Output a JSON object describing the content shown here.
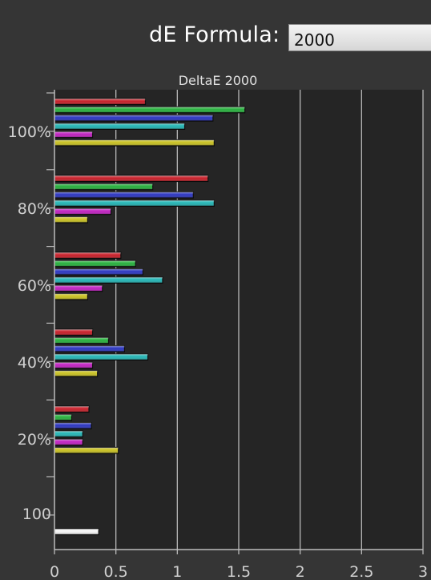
{
  "formula": {
    "label": "dE Formula:",
    "selected": "2000"
  },
  "colors": {
    "background": "#353535",
    "plot_background": "#252525",
    "gridline": "#b8b8b8"
  },
  "chart_data": {
    "type": "bar",
    "orientation": "horizontal",
    "title": "DeltaE 2000",
    "xlim": [
      0,
      3
    ],
    "x_ticks": [
      "0",
      "0.5",
      "1",
      "1.5",
      "2",
      "2.5",
      "3"
    ],
    "grid": true,
    "series_colors": [
      "#c81e28",
      "#26b03c",
      "#2a34c0",
      "#22b4b4",
      "#c020c0",
      "#c8c020"
    ],
    "groups": [
      {
        "label": "100%",
        "values": [
          0.74,
          1.55,
          1.29,
          1.06,
          0.31,
          1.3
        ]
      },
      {
        "label": "80%",
        "values": [
          1.25,
          0.8,
          1.13,
          1.3,
          0.46,
          0.27
        ]
      },
      {
        "label": "60%",
        "values": [
          0.54,
          0.66,
          0.72,
          0.88,
          0.39,
          0.27
        ]
      },
      {
        "label": "40%",
        "values": [
          0.31,
          0.44,
          0.57,
          0.76,
          0.31,
          0.35
        ]
      },
      {
        "label": "20%",
        "values": [
          0.28,
          0.14,
          0.3,
          0.23,
          0.23,
          0.52
        ]
      },
      {
        "label": "100",
        "values": [
          0.36
        ],
        "colors": [
          "#f4f4f4"
        ]
      }
    ]
  }
}
